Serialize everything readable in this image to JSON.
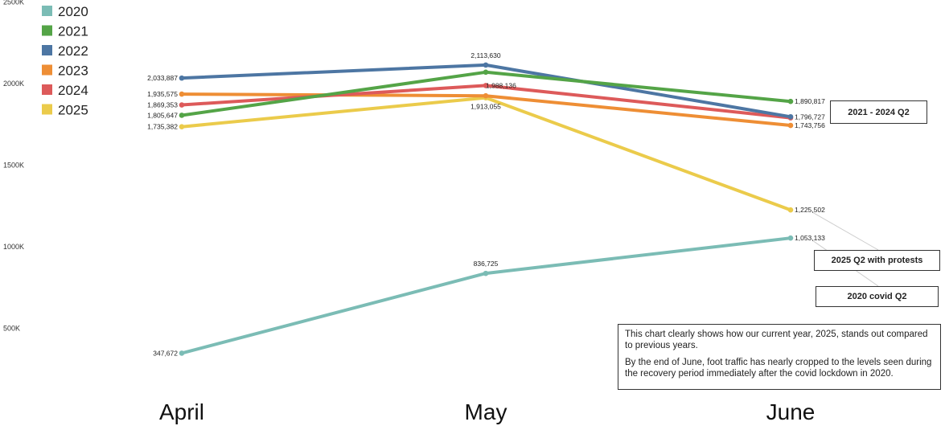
{
  "chart_data": {
    "type": "line",
    "categories": [
      "April",
      "May",
      "June"
    ],
    "y_ticks": [
      "500K",
      "1000K",
      "1500K",
      "2000K",
      "2500K"
    ],
    "ylim": [
      0,
      2500000
    ],
    "grid": false,
    "legend_position": "top-left",
    "series": [
      {
        "name": "2020",
        "color": "#7bbcb5",
        "values": [
          347672,
          836725,
          1053133
        ],
        "labels": [
          "347,672",
          "836,725",
          "1,053,133"
        ]
      },
      {
        "name": "2021",
        "color": "#54a447",
        "values": [
          1805647,
          2070000,
          1890817
        ],
        "labels": [
          "1,805,647",
          "",
          "1,890,817"
        ]
      },
      {
        "name": "2022",
        "color": "#4d76a3",
        "values": [
          2033887,
          2113630,
          1796727
        ],
        "labels": [
          "2,033,887",
          "2,113,630",
          "1,796,727"
        ]
      },
      {
        "name": "2023",
        "color": "#ee8e35",
        "values": [
          1935575,
          1925000,
          1743756
        ],
        "labels": [
          "1,935,575",
          "",
          "1,743,756"
        ]
      },
      {
        "name": "2024",
        "color": "#dd5a5a",
        "values": [
          1869353,
          1988136,
          1790000
        ],
        "labels": [
          "1,869,353",
          "1,988,136",
          ""
        ]
      },
      {
        "name": "2025",
        "color": "#ebcb4b",
        "values": [
          1735382,
          1913055,
          1225502
        ],
        "labels": [
          "1,735,382",
          "1,913,055",
          "1,225,502"
        ]
      }
    ],
    "annotations": {
      "callout_2021_2024": "2021 - 2024 Q2",
      "callout_2025": "2025 Q2 with protests",
      "callout_2020": "2020 covid Q2"
    }
  },
  "note": {
    "paragraph1": "This chart clearly shows how our current year, 2025, stands out compared to previous years.",
    "paragraph2": "By the end of June, foot traffic has nearly cropped to the levels seen during the recovery period immediately after the covid lockdown in 2020."
  }
}
